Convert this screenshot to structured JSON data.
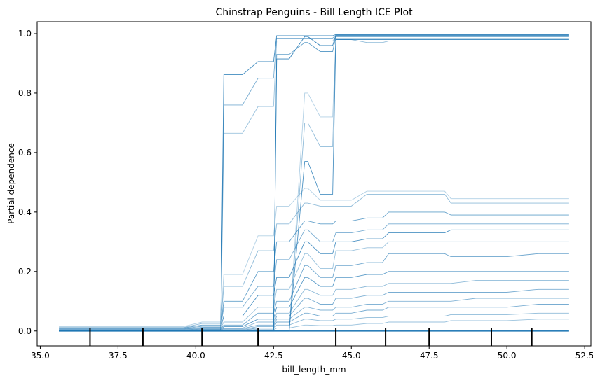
{
  "chart_data": {
    "type": "line",
    "title": "Chinstrap Penguins - Bill Length ICE Plot",
    "xlabel": "bill_length_mm",
    "ylabel": "Partial dependence",
    "xlim": [
      34.9,
      52.7
    ],
    "ylim": [
      -0.05,
      1.04
    ],
    "x_ticks": [
      35.0,
      37.5,
      40.0,
      42.5,
      45.0,
      47.5,
      50.0,
      52.5
    ],
    "x_tick_labels": [
      "35.0",
      "37.5",
      "40.0",
      "42.5",
      "45.0",
      "47.5",
      "50.0",
      "52.5"
    ],
    "y_ticks": [
      0.0,
      0.2,
      0.4,
      0.6,
      0.8,
      1.0
    ],
    "y_tick_labels": [
      "0.0",
      "0.2",
      "0.4",
      "0.6",
      "0.8",
      "1.0"
    ],
    "grid": false,
    "line_color": "#1f77b4",
    "x": [
      35.6,
      36.6,
      37.6,
      38.6,
      39.6,
      40.2,
      40.8,
      40.9,
      41.5,
      42.0,
      42.5,
      42.6,
      43.0,
      43.5,
      43.6,
      44.0,
      44.4,
      44.5,
      45.0,
      45.5,
      46.0,
      46.2,
      47.0,
      48.0,
      48.2,
      49.0,
      50.0,
      51.0,
      52.0
    ],
    "series": [
      {
        "values": [
          0.0,
          0.0,
          0.0,
          0.0,
          0.0,
          0.0,
          0.0,
          0.862,
          0.862,
          0.906,
          0.906,
          0.993,
          0.993,
          0.993,
          0.993,
          0.993,
          0.993,
          0.997,
          0.997,
          0.997,
          0.997,
          0.997,
          0.997,
          0.997,
          0.997,
          0.997,
          0.997,
          0.997,
          0.997
        ]
      },
      {
        "values": [
          0.0,
          0.0,
          0.0,
          0.0,
          0.0,
          0.0,
          0.0,
          0.76,
          0.76,
          0.85,
          0.85,
          0.985,
          0.985,
          0.985,
          0.985,
          0.985,
          0.985,
          0.994,
          0.994,
          0.994,
          0.994,
          0.994,
          0.994,
          0.994,
          0.994,
          0.994,
          0.994,
          0.994,
          0.994
        ]
      },
      {
        "values": [
          0.0,
          0.0,
          0.0,
          0.0,
          0.0,
          0.0,
          0.0,
          0.665,
          0.665,
          0.755,
          0.755,
          0.975,
          0.975,
          0.975,
          0.975,
          0.975,
          0.975,
          0.99,
          0.99,
          0.99,
          0.99,
          0.99,
          0.99,
          0.99,
          0.99,
          0.99,
          0.99,
          0.99,
          0.99
        ]
      },
      {
        "values": [
          0.0,
          0.0,
          0.0,
          0.0,
          0.0,
          0.0,
          0.0,
          0.0,
          0.0,
          0.0,
          0.0,
          0.915,
          0.915,
          0.99,
          0.99,
          0.96,
          0.96,
          0.995,
          0.995,
          0.995,
          0.995,
          0.995,
          0.995,
          0.995,
          0.995,
          0.995,
          0.995,
          0.995,
          0.995
        ]
      },
      {
        "values": [
          0.0,
          0.0,
          0.0,
          0.0,
          0.0,
          0.0,
          0.0,
          0.0,
          0.0,
          0.0,
          0.0,
          0.93,
          0.93,
          0.97,
          0.97,
          0.94,
          0.94,
          0.99,
          0.99,
          0.99,
          0.99,
          0.99,
          0.99,
          0.99,
          0.99,
          0.99,
          0.99,
          0.99,
          0.99
        ]
      },
      {
        "values": [
          0.0,
          0.0,
          0.0,
          0.0,
          0.0,
          0.0,
          0.0,
          0.0,
          0.0,
          0.0,
          0.0,
          0.0,
          0.0,
          0.8,
          0.8,
          0.72,
          0.72,
          0.985,
          0.985,
          0.985,
          0.985,
          0.985,
          0.985,
          0.985,
          0.985,
          0.985,
          0.985,
          0.985,
          0.985
        ]
      },
      {
        "values": [
          0.0,
          0.0,
          0.0,
          0.0,
          0.0,
          0.0,
          0.0,
          0.0,
          0.0,
          0.0,
          0.0,
          0.0,
          0.0,
          0.7,
          0.7,
          0.62,
          0.62,
          0.98,
          0.98,
          0.97,
          0.97,
          0.975,
          0.975,
          0.975,
          0.975,
          0.975,
          0.975,
          0.975,
          0.975
        ]
      },
      {
        "values": [
          0.0,
          0.0,
          0.0,
          0.0,
          0.0,
          0.0,
          0.0,
          0.0,
          0.0,
          0.0,
          0.0,
          0.0,
          0.0,
          0.57,
          0.57,
          0.46,
          0.46,
          0.98,
          0.98,
          0.98,
          0.98,
          0.98,
          0.98,
          0.98,
          0.98,
          0.98,
          0.98,
          0.98,
          0.98
        ]
      },
      {
        "values": [
          0.015,
          0.015,
          0.015,
          0.015,
          0.015,
          0.03,
          0.03,
          0.19,
          0.19,
          0.32,
          0.32,
          0.42,
          0.42,
          0.48,
          0.48,
          0.44,
          0.44,
          0.44,
          0.44,
          0.47,
          0.47,
          0.47,
          0.47,
          0.47,
          0.445,
          0.445,
          0.445,
          0.445,
          0.445
        ]
      },
      {
        "values": [
          0.012,
          0.012,
          0.012,
          0.012,
          0.012,
          0.025,
          0.025,
          0.15,
          0.15,
          0.27,
          0.27,
          0.36,
          0.36,
          0.43,
          0.43,
          0.42,
          0.42,
          0.42,
          0.42,
          0.46,
          0.46,
          0.46,
          0.46,
          0.46,
          0.43,
          0.43,
          0.43,
          0.43,
          0.43
        ]
      },
      {
        "values": [
          0.01,
          0.01,
          0.01,
          0.01,
          0.01,
          0.02,
          0.02,
          0.1,
          0.1,
          0.2,
          0.2,
          0.3,
          0.3,
          0.37,
          0.37,
          0.36,
          0.36,
          0.37,
          0.37,
          0.38,
          0.38,
          0.4,
          0.4,
          0.4,
          0.39,
          0.39,
          0.39,
          0.39,
          0.39
        ]
      },
      {
        "values": [
          0.008,
          0.008,
          0.008,
          0.008,
          0.008,
          0.016,
          0.016,
          0.08,
          0.08,
          0.15,
          0.15,
          0.24,
          0.24,
          0.34,
          0.34,
          0.3,
          0.3,
          0.33,
          0.33,
          0.34,
          0.34,
          0.36,
          0.36,
          0.36,
          0.36,
          0.36,
          0.36,
          0.36,
          0.36
        ]
      },
      {
        "values": [
          0.006,
          0.006,
          0.006,
          0.006,
          0.006,
          0.012,
          0.012,
          0.05,
          0.05,
          0.12,
          0.12,
          0.18,
          0.18,
          0.3,
          0.3,
          0.26,
          0.26,
          0.3,
          0.3,
          0.31,
          0.31,
          0.33,
          0.33,
          0.33,
          0.34,
          0.34,
          0.34,
          0.34,
          0.34
        ]
      },
      {
        "values": [
          0.004,
          0.004,
          0.004,
          0.004,
          0.004,
          0.01,
          0.01,
          0.03,
          0.03,
          0.08,
          0.08,
          0.14,
          0.14,
          0.26,
          0.26,
          0.21,
          0.21,
          0.27,
          0.27,
          0.28,
          0.28,
          0.3,
          0.3,
          0.3,
          0.3,
          0.3,
          0.3,
          0.3,
          0.3
        ]
      },
      {
        "values": [
          0.003,
          0.003,
          0.003,
          0.003,
          0.003,
          0.008,
          0.008,
          0.02,
          0.02,
          0.06,
          0.06,
          0.1,
          0.1,
          0.22,
          0.22,
          0.18,
          0.18,
          0.22,
          0.22,
          0.23,
          0.23,
          0.26,
          0.26,
          0.26,
          0.25,
          0.25,
          0.25,
          0.26,
          0.26
        ]
      },
      {
        "values": [
          0.002,
          0.002,
          0.002,
          0.002,
          0.002,
          0.005,
          0.005,
          0.015,
          0.015,
          0.04,
          0.04,
          0.08,
          0.08,
          0.18,
          0.18,
          0.15,
          0.15,
          0.18,
          0.18,
          0.19,
          0.19,
          0.2,
          0.2,
          0.2,
          0.2,
          0.2,
          0.2,
          0.2,
          0.2
        ]
      },
      {
        "values": [
          0.002,
          0.002,
          0.002,
          0.002,
          0.002,
          0.004,
          0.004,
          0.01,
          0.01,
          0.03,
          0.03,
          0.06,
          0.06,
          0.14,
          0.14,
          0.12,
          0.12,
          0.14,
          0.14,
          0.15,
          0.15,
          0.16,
          0.16,
          0.16,
          0.16,
          0.17,
          0.17,
          0.17,
          0.17
        ]
      },
      {
        "values": [
          0.001,
          0.001,
          0.001,
          0.001,
          0.001,
          0.003,
          0.003,
          0.008,
          0.008,
          0.02,
          0.02,
          0.05,
          0.05,
          0.11,
          0.11,
          0.09,
          0.09,
          0.11,
          0.11,
          0.12,
          0.12,
          0.13,
          0.13,
          0.13,
          0.13,
          0.13,
          0.13,
          0.14,
          0.14
        ]
      },
      {
        "values": [
          0.001,
          0.001,
          0.001,
          0.001,
          0.001,
          0.002,
          0.002,
          0.005,
          0.005,
          0.015,
          0.015,
          0.04,
          0.04,
          0.08,
          0.08,
          0.07,
          0.07,
          0.08,
          0.08,
          0.09,
          0.09,
          0.1,
          0.1,
          0.1,
          0.1,
          0.11,
          0.11,
          0.11,
          0.11
        ]
      },
      {
        "values": [
          0.0,
          0.0,
          0.0,
          0.0,
          0.0,
          0.001,
          0.001,
          0.003,
          0.003,
          0.01,
          0.01,
          0.03,
          0.03,
          0.06,
          0.06,
          0.05,
          0.05,
          0.06,
          0.06,
          0.07,
          0.07,
          0.08,
          0.08,
          0.08,
          0.08,
          0.08,
          0.08,
          0.09,
          0.09
        ]
      },
      {
        "values": [
          0.0,
          0.0,
          0.0,
          0.0,
          0.0,
          0.0,
          0.0,
          0.002,
          0.002,
          0.006,
          0.006,
          0.02,
          0.02,
          0.04,
          0.04,
          0.035,
          0.035,
          0.04,
          0.04,
          0.045,
          0.045,
          0.05,
          0.05,
          0.05,
          0.055,
          0.055,
          0.055,
          0.06,
          0.06
        ]
      },
      {
        "values": [
          0.0,
          0.0,
          0.0,
          0.0,
          0.0,
          0.0,
          0.0,
          0.001,
          0.001,
          0.003,
          0.003,
          0.01,
          0.01,
          0.02,
          0.02,
          0.018,
          0.018,
          0.02,
          0.02,
          0.025,
          0.025,
          0.03,
          0.03,
          0.03,
          0.035,
          0.035,
          0.035,
          0.04,
          0.04
        ]
      },
      {
        "values": [
          0.0,
          0.0,
          0.0,
          0.0,
          0.0,
          0.0,
          0.0,
          0.0,
          0.0,
          0.0,
          0.0,
          0.0,
          0.0,
          0.0,
          0.0,
          0.0,
          0.0,
          0.0,
          0.0,
          0.0,
          0.0,
          0.0,
          0.0,
          0.0,
          0.0,
          0.0,
          0.0,
          0.0,
          0.0
        ]
      }
    ],
    "rug_x": [
      36.6,
      38.3,
      40.2,
      42.0,
      44.5,
      46.1,
      47.5,
      49.5,
      50.8
    ]
  }
}
